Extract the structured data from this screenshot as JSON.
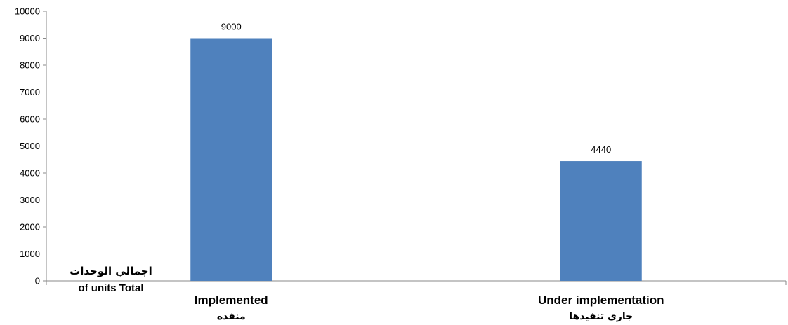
{
  "chart_data": {
    "type": "bar",
    "categories": [
      "Implemented",
      "Under implementation"
    ],
    "categories_ar": [
      "منفذه",
      "جارى تنفيذها"
    ],
    "values": [
      9000,
      4440
    ],
    "data_labels": [
      "9000",
      "4440"
    ],
    "ylim": [
      0,
      10000
    ],
    "yticks": [
      "0",
      "1000",
      "2000",
      "3000",
      "4000",
      "5000",
      "6000",
      "7000",
      "8000",
      "9000",
      "10000"
    ],
    "ylabel_ar": "اجمالي الوحدات",
    "ylabel": "of units Total",
    "bar_color": "#4F81BD",
    "grid": false,
    "legend": "none"
  }
}
